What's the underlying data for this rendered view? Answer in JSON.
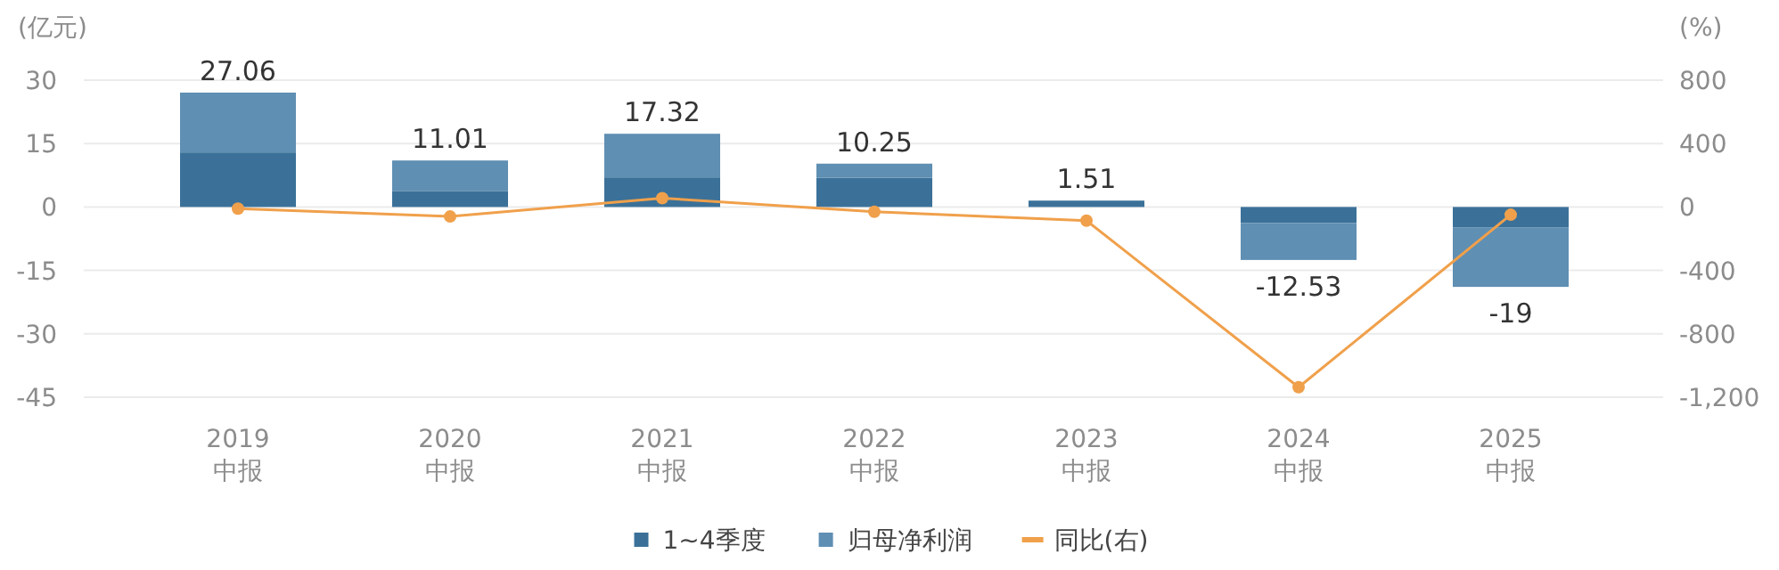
{
  "chart_data": {
    "type": "bar",
    "stacked": true,
    "ylabel": "(亿元)",
    "y2label": "(%)",
    "categories": [
      "2019\n中报",
      "2020\n中报",
      "2021\n中报",
      "2022\n中报",
      "2023\n中报",
      "2024\n中报",
      "2025\n中报"
    ],
    "series": [
      {
        "name": "1~4季度",
        "color": "#3b7199",
        "values": [
          12.9,
          3.8,
          7.0,
          6.9,
          1.51,
          -3.8,
          -4.9
        ]
      },
      {
        "name": "归母净利润",
        "color": "#5f8fb3",
        "values": [
          14.16,
          7.2,
          10.32,
          3.35,
          null,
          -8.73,
          -14.0
        ]
      },
      {
        "name": "同比(右)",
        "type": "line",
        "axis": "y2",
        "color": "#f0a04b",
        "marker": "circle",
        "values": [
          -10,
          -60,
          56,
          -30,
          -86,
          -1137,
          -49
        ]
      }
    ],
    "totals": [
      "27.06",
      "11.01",
      "17.32",
      "10.25",
      "1.51",
      "-12.53",
      "-19"
    ],
    "ylim": [
      -45,
      30
    ],
    "yticks": [
      -45,
      -30,
      -15,
      0,
      15,
      30
    ],
    "y2lim": [
      -1200,
      800
    ],
    "y2ticks": [
      {
        "value": -1200,
        "label": "-1,200"
      },
      -800,
      -400,
      0,
      400,
      800
    ],
    "grid": "y",
    "legend": "bottom"
  }
}
